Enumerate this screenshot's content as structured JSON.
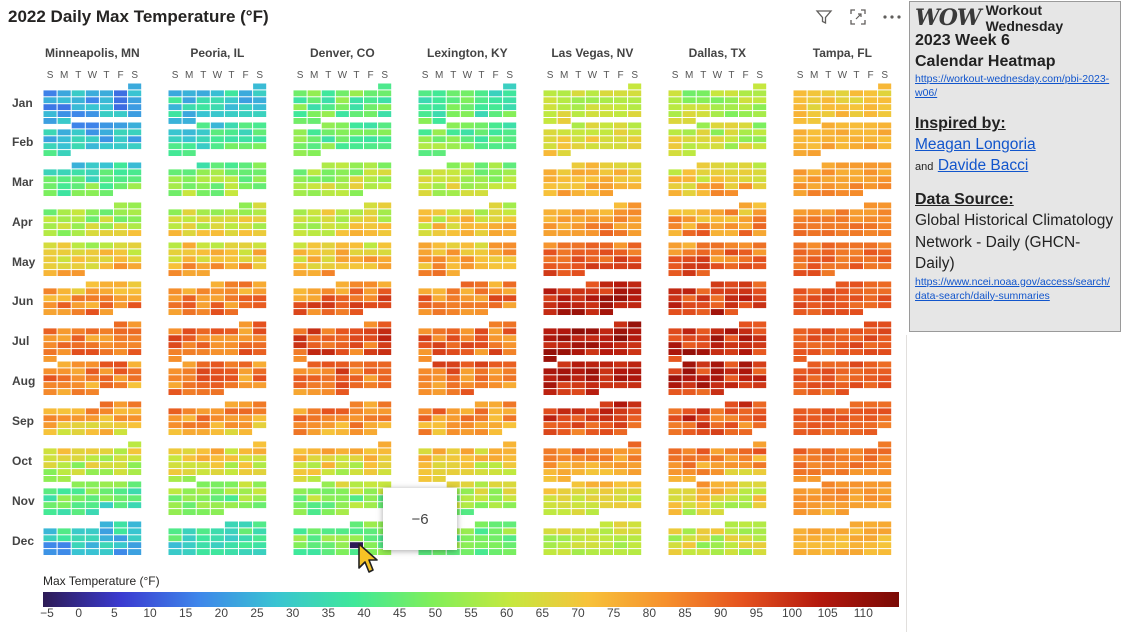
{
  "header": {
    "title": "2022 Daily Max Temperature (°F)",
    "filter_icon": "filter-icon",
    "focus_icon": "focus-mode-icon",
    "more_icon": "more-options-icon"
  },
  "chart_data": {
    "type": "heatmap",
    "title": "2022 Daily Max Temperature (°F)",
    "year": 2022,
    "cities": [
      "Minneapolis, MN",
      "Peoria, IL",
      "Denver, CO",
      "Lexington, KY",
      "Las Vegas, NV",
      "Dallas, TX",
      "Tampa, FL"
    ],
    "months": [
      "Jan",
      "Feb",
      "Mar",
      "Apr",
      "May",
      "Jun",
      "Jul",
      "Aug",
      "Sep",
      "Oct",
      "Nov",
      "Dec"
    ],
    "weekdays": [
      "S",
      "M",
      "T",
      "W",
      "T",
      "F",
      "S"
    ],
    "monthly_typical_max": [
      [
        20,
        26,
        42,
        56,
        68,
        82,
        86,
        83,
        76,
        60,
        42,
        26
      ],
      [
        31,
        36,
        50,
        62,
        73,
        85,
        87,
        85,
        80,
        65,
        50,
        36
      ],
      [
        45,
        46,
        58,
        62,
        72,
        88,
        93,
        88,
        83,
        67,
        52,
        45
      ],
      [
        40,
        46,
        58,
        68,
        77,
        87,
        88,
        86,
        81,
        68,
        55,
        45
      ],
      [
        60,
        65,
        74,
        80,
        90,
        104,
        106,
        102,
        96,
        80,
        66,
        58
      ],
      [
        56,
        60,
        70,
        80,
        88,
        98,
        101,
        99,
        93,
        80,
        66,
        60
      ],
      [
        70,
        75,
        80,
        84,
        89,
        92,
        92,
        91,
        90,
        86,
        80,
        74
      ]
    ],
    "colorscale": {
      "title": "Max Temperature (°F)",
      "min": -5,
      "max": 115,
      "tick_labels": [
        "−5",
        "0",
        "5",
        "10",
        "15",
        "20",
        "25",
        "30",
        "35",
        "40",
        "45",
        "50",
        "55",
        "60",
        "65",
        "70",
        "75",
        "80",
        "85",
        "90",
        "95",
        "100",
        "105",
        "110"
      ]
    },
    "tooltip_value": "−6",
    "tooltip_city": "Denver, CO",
    "tooltip_month": "Dec"
  },
  "side_panel": {
    "logo_text": "WOW",
    "brand": "Workout Wednesday",
    "line1": "2023 Week 6",
    "line2": "Calendar Heatmap",
    "project_link": "https://workout-wednesday.com/pbi-2023-w06/",
    "inspired_heading": "Inspired by:",
    "inspired_name1": "Meagan Longoria",
    "inspired_and": "and",
    "inspired_name2": "Davide Bacci",
    "data_source_heading": "Data Source:",
    "data_source_text": "Global Historical Climatology Network - Daily (GHCN-Daily)",
    "data_source_link": "https://www.ncei.noaa.gov/access/search/data-search/daily-summaries"
  },
  "colors": {
    "gradient": [
      "#2d1b55",
      "#3a3ad0",
      "#3e86ea",
      "#39c4d2",
      "#3fe89a",
      "#80ef5a",
      "#c5e83e",
      "#f7c23a",
      "#f6902c",
      "#e5521f",
      "#b3180d",
      "#7a0a05"
    ],
    "panel_background": "#e6e6e6"
  }
}
